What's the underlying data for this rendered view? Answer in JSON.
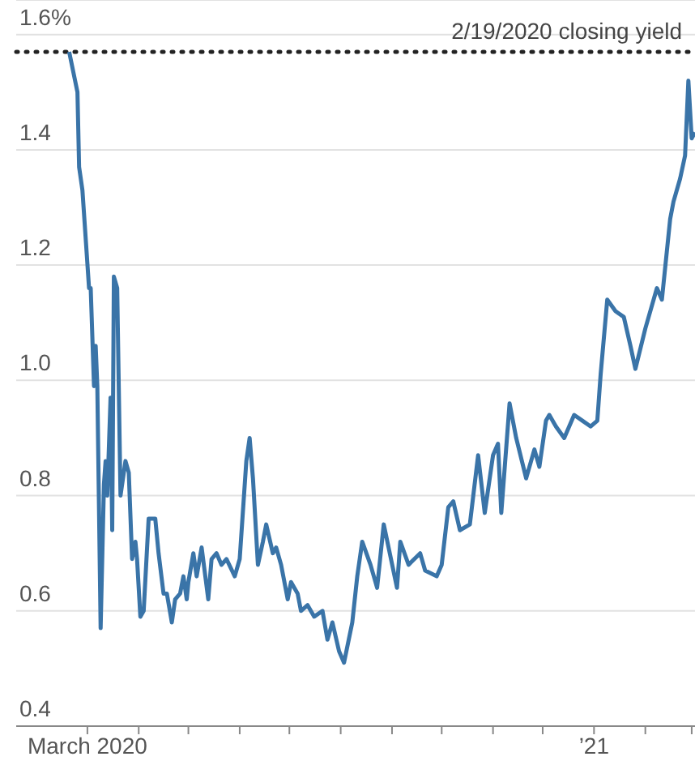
{
  "chart_data": {
    "type": "line",
    "x": [
      "2020-02-19",
      "2020-02-24",
      "2020-02-25",
      "2020-02-27",
      "2020-03-02",
      "2020-03-03",
      "2020-03-05",
      "2020-03-06",
      "2020-03-07",
      "2020-03-09",
      "2020-03-11",
      "2020-03-12",
      "2020-03-13",
      "2020-03-15",
      "2020-03-16",
      "2020-03-17",
      "2020-03-19",
      "2020-03-21",
      "2020-03-24",
      "2020-03-26",
      "2020-03-28",
      "2020-03-30",
      "2020-03-31",
      "2020-04-02",
      "2020-04-04",
      "2020-04-07",
      "2020-04-11",
      "2020-04-13",
      "2020-04-16",
      "2020-04-18",
      "2020-04-21",
      "2020-04-23",
      "2020-04-26",
      "2020-04-28",
      "2020-04-30",
      "2020-05-01",
      "2020-05-04",
      "2020-05-06",
      "2020-05-09",
      "2020-05-13",
      "2020-05-15",
      "2020-05-18",
      "2020-05-21",
      "2020-05-24",
      "2020-05-29",
      "2020-06-01",
      "2020-06-05",
      "2020-06-07",
      "2020-06-09",
      "2020-06-12",
      "2020-06-15",
      "2020-06-17",
      "2020-06-21",
      "2020-06-23",
      "2020-06-26",
      "2020-06-30",
      "2020-07-02",
      "2020-07-06",
      "2020-07-08",
      "2020-07-12",
      "2020-07-16",
      "2020-07-21",
      "2020-07-24",
      "2020-07-27",
      "2020-07-31",
      "2020-08-03",
      "2020-08-08",
      "2020-08-11",
      "2020-08-14",
      "2020-08-19",
      "2020-08-23",
      "2020-08-27",
      "2020-09-04",
      "2020-09-06",
      "2020-09-11",
      "2020-09-18",
      "2020-09-21",
      "2020-09-28",
      "2020-10-01",
      "2020-10-05",
      "2020-10-08",
      "2020-10-12",
      "2020-10-18",
      "2020-10-23",
      "2020-10-27",
      "2020-11-01",
      "2020-11-04",
      "2020-11-06",
      "2020-11-11",
      "2020-11-15",
      "2020-11-21",
      "2020-11-26",
      "2020-11-29",
      "2020-12-03",
      "2020-12-05",
      "2020-12-09",
      "2020-12-14",
      "2020-12-20",
      "2020-12-25",
      "2020-12-30",
      "2021-01-03",
      "2021-01-05",
      "2021-01-09",
      "2021-01-14",
      "2021-01-19",
      "2021-01-23",
      "2021-01-26",
      "2021-02-01",
      "2021-02-08",
      "2021-02-11",
      "2021-02-16",
      "2021-02-18",
      "2021-02-22",
      "2021-02-25",
      "2021-02-27",
      "2021-03-01",
      "2021-03-03"
    ],
    "series": [
      {
        "color": "#3a74a8",
        "values": [
          1.57,
          1.5,
          1.37,
          1.33,
          1.16,
          1.16,
          0.99,
          1.06,
          0.99,
          0.57,
          0.82,
          0.86,
          0.8,
          0.97,
          0.74,
          1.18,
          1.16,
          0.8,
          0.86,
          0.84,
          0.69,
          0.72,
          0.69,
          0.59,
          0.6,
          0.76,
          0.76,
          0.7,
          0.63,
          0.63,
          0.58,
          0.62,
          0.63,
          0.66,
          0.62,
          0.65,
          0.7,
          0.66,
          0.71,
          0.62,
          0.69,
          0.7,
          0.68,
          0.69,
          0.66,
          0.69,
          0.86,
          0.9,
          0.83,
          0.68,
          0.72,
          0.75,
          0.7,
          0.71,
          0.68,
          0.62,
          0.65,
          0.63,
          0.6,
          0.61,
          0.59,
          0.6,
          0.55,
          0.58,
          0.53,
          0.51,
          0.58,
          0.66,
          0.72,
          0.68,
          0.64,
          0.75,
          0.64,
          0.72,
          0.68,
          0.7,
          0.67,
          0.66,
          0.68,
          0.78,
          0.79,
          0.74,
          0.75,
          0.87,
          0.77,
          0.87,
          0.89,
          0.77,
          0.96,
          0.9,
          0.83,
          0.88,
          0.85,
          0.93,
          0.94,
          0.92,
          0.9,
          0.94,
          0.93,
          0.92,
          0.93,
          1.01,
          1.14,
          1.12,
          1.11,
          1.06,
          1.02,
          1.09,
          1.16,
          1.14,
          1.28,
          1.31,
          1.35,
          1.39,
          1.52,
          1.42,
          1.43
        ]
      }
    ],
    "xlim": [
      "2020-01-18",
      "2021-03-03"
    ],
    "xticks": [
      {
        "value": "2020-03-01",
        "label": "March 2020"
      },
      {
        "value": "2020-04-01",
        "label": null
      },
      {
        "value": "2020-05-01",
        "label": null
      },
      {
        "value": "2020-06-01",
        "label": null
      },
      {
        "value": "2020-07-01",
        "label": null
      },
      {
        "value": "2020-08-01",
        "label": null
      },
      {
        "value": "2020-09-01",
        "label": null
      },
      {
        "value": "2020-10-01",
        "label": null
      },
      {
        "value": "2020-11-01",
        "label": null
      },
      {
        "value": "2020-12-01",
        "label": null
      },
      {
        "value": "2021-01-01",
        "label": "’21"
      },
      {
        "value": "2021-02-01",
        "label": null
      },
      {
        "value": "2021-03-01",
        "label": null
      }
    ],
    "ylim": [
      0.4,
      1.66
    ],
    "yticks": [
      0.4,
      0.6,
      0.8,
      {
        "value": 1,
        "label": "1.0"
      },
      1.2,
      1.4,
      {
        "value": 1.6,
        "label": "1.6%"
      }
    ],
    "grid": "y",
    "ref_lines": [
      {
        "axis": "y",
        "value": 1.57,
        "label": "2/19/2020 closing yield",
        "color": "#222222",
        "line_style": "dotted"
      }
    ],
    "line_style": "solid",
    "marker": "none"
  }
}
